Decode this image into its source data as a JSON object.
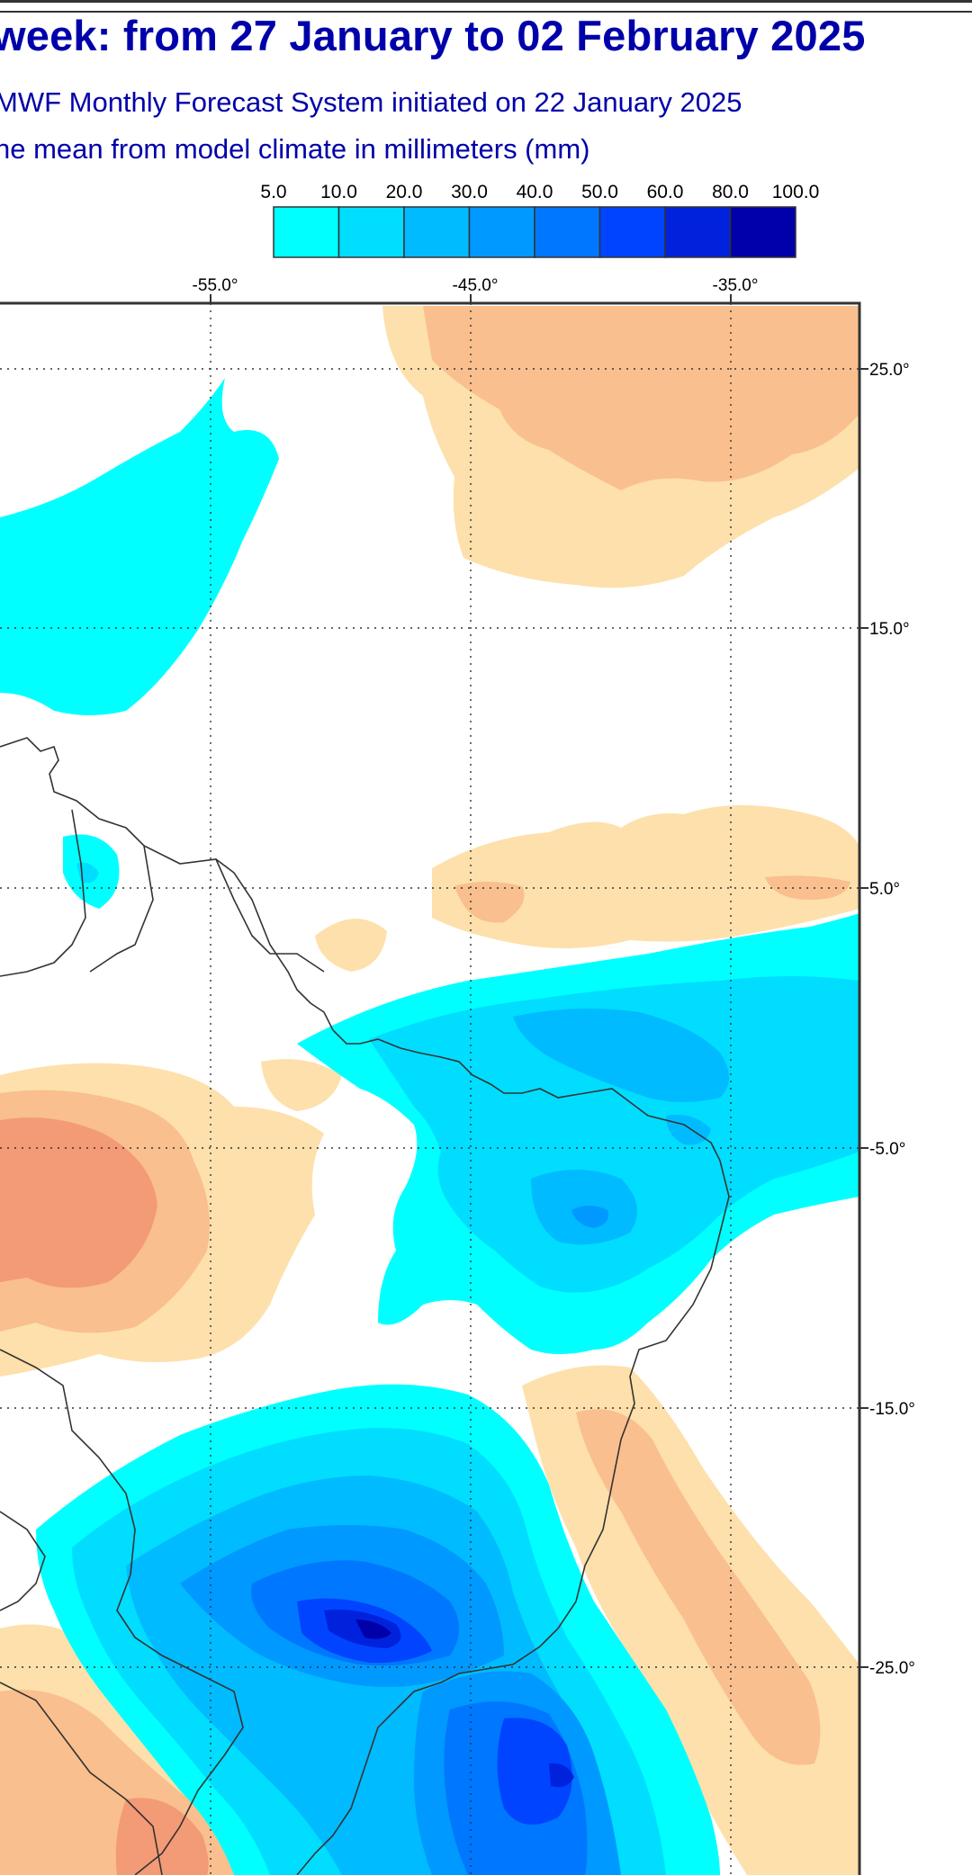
{
  "title": "week: from 27 January to 02 February 2025",
  "subtitle_line1": "MWF Monthly Forecast System initiated on 22 January 2025",
  "subtitle_line2": "ne mean from model climate in millimeters (mm)",
  "colors": {
    "title": "#0000aa",
    "land_border": "#333333",
    "grid": "#333333",
    "positive_scale": [
      "#00ffff",
      "#00ddff",
      "#00bbff",
      "#0099ff",
      "#0077ff",
      "#0044ff",
      "#0022dd",
      "#0000aa"
    ],
    "negative_scale": [
      "#fde0ab",
      "#f9bf8e",
      "#f39a76"
    ]
  },
  "legend": {
    "labels": [
      "5.0",
      "10.0",
      "20.0",
      "30.0",
      "40.0",
      "50.0",
      "60.0",
      "80.0",
      "100.0"
    ]
  },
  "map": {
    "lon_labels": [
      "-55.0°",
      "-45.0°",
      "-35.0°"
    ],
    "lat_labels": [
      "25.0°",
      "15.0°",
      "5.0°",
      "-5.0°",
      "-15.0°",
      "-25.0°"
    ]
  }
}
